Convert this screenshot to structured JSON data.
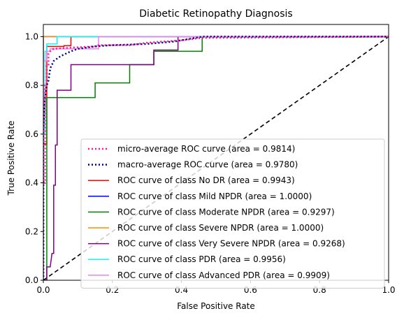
{
  "chart_data": {
    "type": "line",
    "title": "Diabetic Retinopathy Diagnosis",
    "xlabel": "False Positive Rate",
    "ylabel": "True Positive Rate",
    "xlim": [
      0.0,
      1.0
    ],
    "ylim": [
      0.0,
      1.05
    ],
    "xticks": [
      "0.0",
      "0.2",
      "0.4",
      "0.6",
      "0.8",
      "1.0"
    ],
    "yticks": [
      "0.0",
      "0.2",
      "0.4",
      "0.6",
      "0.8",
      "1.0"
    ],
    "grid": false,
    "legend_position": "lower right",
    "series": [
      {
        "name": "micro-average ROC curve (area = 0.9814)",
        "color": "#ff1493",
        "dash": "dotted",
        "width": 2.5,
        "x": [
          0,
          0,
          0.005,
          0.005,
          0.01,
          0.01,
          0.015,
          0.015,
          0.02,
          0.03,
          0.05,
          0.08,
          0.15,
          0.16,
          0.25,
          0.3,
          0.4,
          0.46,
          1.0
        ],
        "y": [
          0,
          0.4,
          0.4,
          0.8,
          0.8,
          0.88,
          0.88,
          0.93,
          0.94,
          0.95,
          0.952,
          0.955,
          0.96,
          0.965,
          0.965,
          0.975,
          0.985,
          0.995,
          1.0
        ]
      },
      {
        "name": "macro-average ROC curve (area = 0.9780)",
        "color": "#000080",
        "dash": "dotted",
        "width": 2.5,
        "x": [
          0,
          0,
          0.005,
          0.01,
          0.015,
          0.02,
          0.03,
          0.05,
          0.08,
          0.1,
          0.15,
          0.2,
          0.3,
          0.38,
          0.46,
          1.0
        ],
        "y": [
          0,
          0.62,
          0.75,
          0.8,
          0.82,
          0.87,
          0.9,
          0.92,
          0.94,
          0.95,
          0.96,
          0.965,
          0.97,
          0.98,
          1.0,
          1.0
        ]
      },
      {
        "name": "ROC curve of class No DR (area = 0.9943)",
        "color": "#ff0000",
        "dash": "solid",
        "width": 1.5,
        "x": [
          0,
          0,
          0.01,
          0.01,
          0.06,
          0.06,
          0.08,
          0.08,
          1.0
        ],
        "y": [
          0,
          0.56,
          0.56,
          0.96,
          0.96,
          0.963,
          0.963,
          1.0,
          1.0
        ]
      },
      {
        "name": "ROC curve of class Mild NPDR (area = 1.0000)",
        "color": "#0000ff",
        "dash": "solid",
        "width": 1.5,
        "x": [
          0,
          0,
          1.0
        ],
        "y": [
          0,
          1.0,
          1.0
        ]
      },
      {
        "name": "ROC curve of class Moderate NPDR (area = 0.9297)",
        "color": "#008000",
        "dash": "solid",
        "width": 1.5,
        "x": [
          0,
          0,
          0.01,
          0.01,
          0.15,
          0.15,
          0.25,
          0.25,
          0.32,
          0.32,
          0.46,
          0.46,
          1.0
        ],
        "y": [
          0,
          0.0,
          0.0,
          0.75,
          0.75,
          0.81,
          0.81,
          0.885,
          0.885,
          0.94,
          0.94,
          1.0,
          1.0
        ]
      },
      {
        "name": "ROC curve of class Severe NPDR (area = 1.0000)",
        "color": "#ff8c00",
        "dash": "solid",
        "width": 1.5,
        "x": [
          0,
          0,
          1.0
        ],
        "y": [
          0,
          1.0,
          1.0
        ]
      },
      {
        "name": "ROC curve of class Very Severe NPDR (area = 0.9268)",
        "color": "#800080",
        "dash": "solid",
        "width": 1.5,
        "x": [
          0,
          0.01,
          0.01,
          0.02,
          0.025,
          0.03,
          0.03,
          0.035,
          0.035,
          0.04,
          0.04,
          0.08,
          0.08,
          0.32,
          0.32,
          0.39,
          0.39,
          1.0
        ],
        "y": [
          0,
          0,
          0.055,
          0.055,
          0.11,
          0.11,
          0.39,
          0.39,
          0.555,
          0.555,
          0.78,
          0.78,
          0.885,
          0.885,
          0.945,
          0.945,
          1.0,
          1.0
        ]
      },
      {
        "name": "ROC curve of class PDR (area = 0.9956)",
        "color": "#00ffff",
        "dash": "solid",
        "width": 1.5,
        "x": [
          0,
          0,
          0.005,
          0.005,
          0.01,
          0.01,
          0.04,
          0.04,
          1.0
        ],
        "y": [
          0,
          0.6,
          0.6,
          0.94,
          0.94,
          0.97,
          0.97,
          1.0,
          1.0
        ]
      },
      {
        "name": "ROC curve of class Advanced PDR (area = 0.9909)",
        "color": "#ee82ee",
        "dash": "solid",
        "width": 1.5,
        "x": [
          0,
          0,
          0.01,
          0.01,
          0.02,
          0.02,
          0.16,
          0.16,
          1.0
        ],
        "y": [
          0,
          0.9,
          0.9,
          0.94,
          0.94,
          0.95,
          0.95,
          1.0,
          1.0
        ]
      }
    ],
    "reference_line": {
      "x": [
        0,
        1
      ],
      "y": [
        0,
        1
      ],
      "color": "#000000",
      "dash": "dashed"
    }
  }
}
